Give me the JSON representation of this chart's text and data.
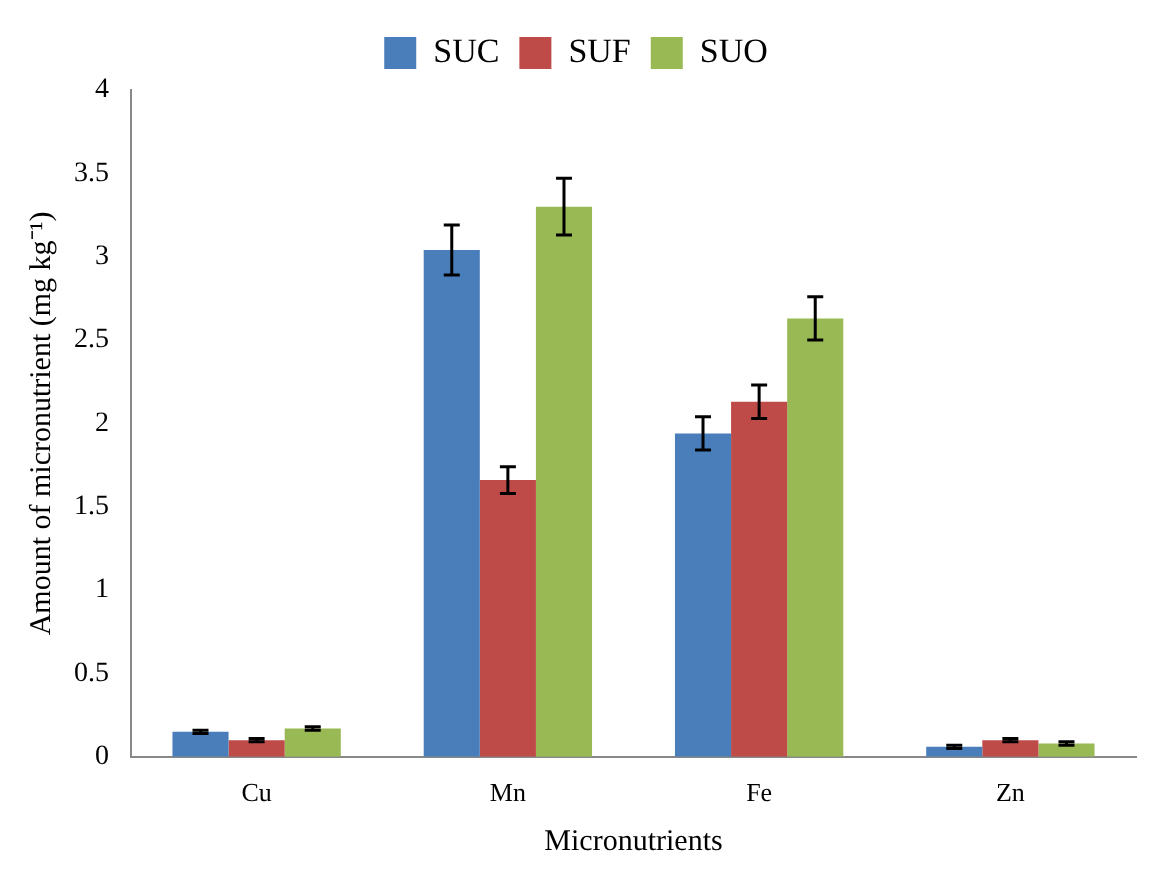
{
  "chart_data": {
    "type": "bar",
    "xlabel": "Micronutrients",
    "ylabel": "Amount of micronutrient (mg kg⁻¹)",
    "categories": [
      "Cu",
      "Mn",
      "Fe",
      "Zn"
    ],
    "series": [
      {
        "name": "SUC",
        "color": "#4a7ebb",
        "values": [
          0.15,
          3.04,
          1.94,
          0.06
        ],
        "errors": [
          0.01,
          0.15,
          0.1,
          0.01
        ]
      },
      {
        "name": "SUF",
        "color": "#be4b48",
        "values": [
          0.1,
          1.66,
          2.13,
          0.1
        ],
        "errors": [
          0.01,
          0.08,
          0.1,
          0.01
        ]
      },
      {
        "name": "SUO",
        "color": "#98b954",
        "values": [
          0.17,
          3.3,
          2.63,
          0.08
        ],
        "errors": [
          0.01,
          0.17,
          0.13,
          0.01
        ]
      }
    ],
    "ylim": [
      0,
      4
    ],
    "yticks": [
      0,
      0.5,
      1,
      1.5,
      2,
      2.5,
      3,
      3.5,
      4
    ],
    "grid": false,
    "legend": "top"
  }
}
